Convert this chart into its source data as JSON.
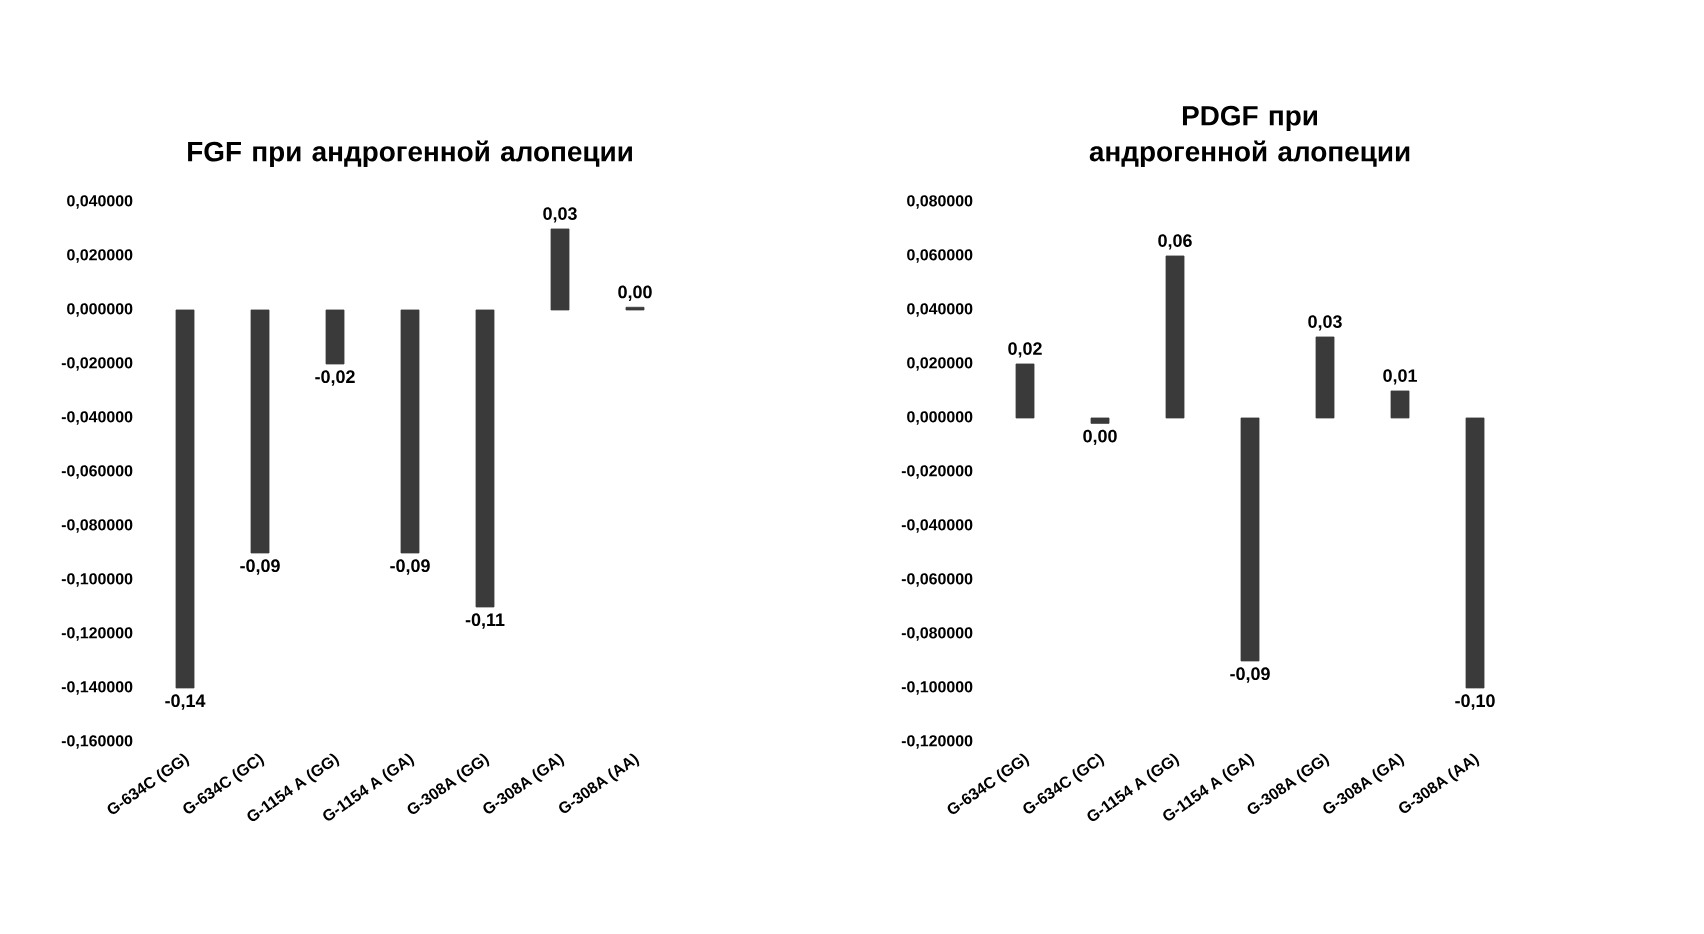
{
  "chart_data": [
    {
      "type": "bar",
      "title": "FGF при андрогенной алопеции",
      "categories": [
        "G-634C (GG)",
        "G-634C (GC)",
        "G-1154 A (GG)",
        "G-1154 A (GA)",
        "G-308A (GG)",
        "G-308A (GA)",
        "G-308A (AA)"
      ],
      "values": [
        -0.14,
        -0.09,
        -0.02,
        -0.09,
        -0.11,
        0.03,
        0.001
      ],
      "value_labels": [
        "-0,14",
        "-0,09",
        "-0,02",
        "-0,09",
        "-0,11",
        "0,03",
        "0,00"
      ],
      "color": "#3a3a3a",
      "ylim": [
        -0.16,
        0.04
      ],
      "yticks": [
        {
          "value": -0.16,
          "label": "-0,160000"
        },
        {
          "value": -0.14,
          "label": "-0,140000"
        },
        {
          "value": -0.12,
          "label": "-0,120000"
        },
        {
          "value": -0.1,
          "label": "-0,100000"
        },
        {
          "value": -0.08,
          "label": "-0,080000"
        },
        {
          "value": -0.06,
          "label": "-0,060000"
        },
        {
          "value": -0.04,
          "label": "-0,040000"
        },
        {
          "value": -0.02,
          "label": "-0,020000"
        },
        {
          "value": 0,
          "label": "0,000000"
        },
        {
          "value": 0.02,
          "label": "0,020000"
        },
        {
          "value": 0.04,
          "label": "0,040000"
        }
      ]
    },
    {
      "type": "bar",
      "title": "PDGF при андрогенной алопеции",
      "categories": [
        "G-634C (GG)",
        "G-634C (GC)",
        "G-1154 A (GG)",
        "G-1154 A (GA)",
        "G-308A (GG)",
        "G-308A (GA)",
        "G-308A (AA)"
      ],
      "values": [
        0.02,
        -0.002,
        0.06,
        -0.09,
        0.03,
        0.01,
        -0.1
      ],
      "value_labels": [
        "0,02",
        "0,00",
        "0,06",
        "-0,09",
        "0,03",
        "0,01",
        "-0,10"
      ],
      "color": "#3a3a3a",
      "ylim": [
        -0.12,
        0.08
      ],
      "yticks": [
        {
          "value": -0.12,
          "label": "-0,120000"
        },
        {
          "value": -0.1,
          "label": "-0,100000"
        },
        {
          "value": -0.08,
          "label": "-0,080000"
        },
        {
          "value": -0.06,
          "label": "-0,060000"
        },
        {
          "value": -0.04,
          "label": "-0,040000"
        },
        {
          "value": -0.02,
          "label": "-0,020000"
        },
        {
          "value": 0,
          "label": "0,000000"
        },
        {
          "value": 0.02,
          "label": "0,020000"
        },
        {
          "value": 0.04,
          "label": "0,040000"
        },
        {
          "value": 0.06,
          "label": "0,060000"
        },
        {
          "value": 0.08,
          "label": "0,080000"
        }
      ]
    }
  ]
}
